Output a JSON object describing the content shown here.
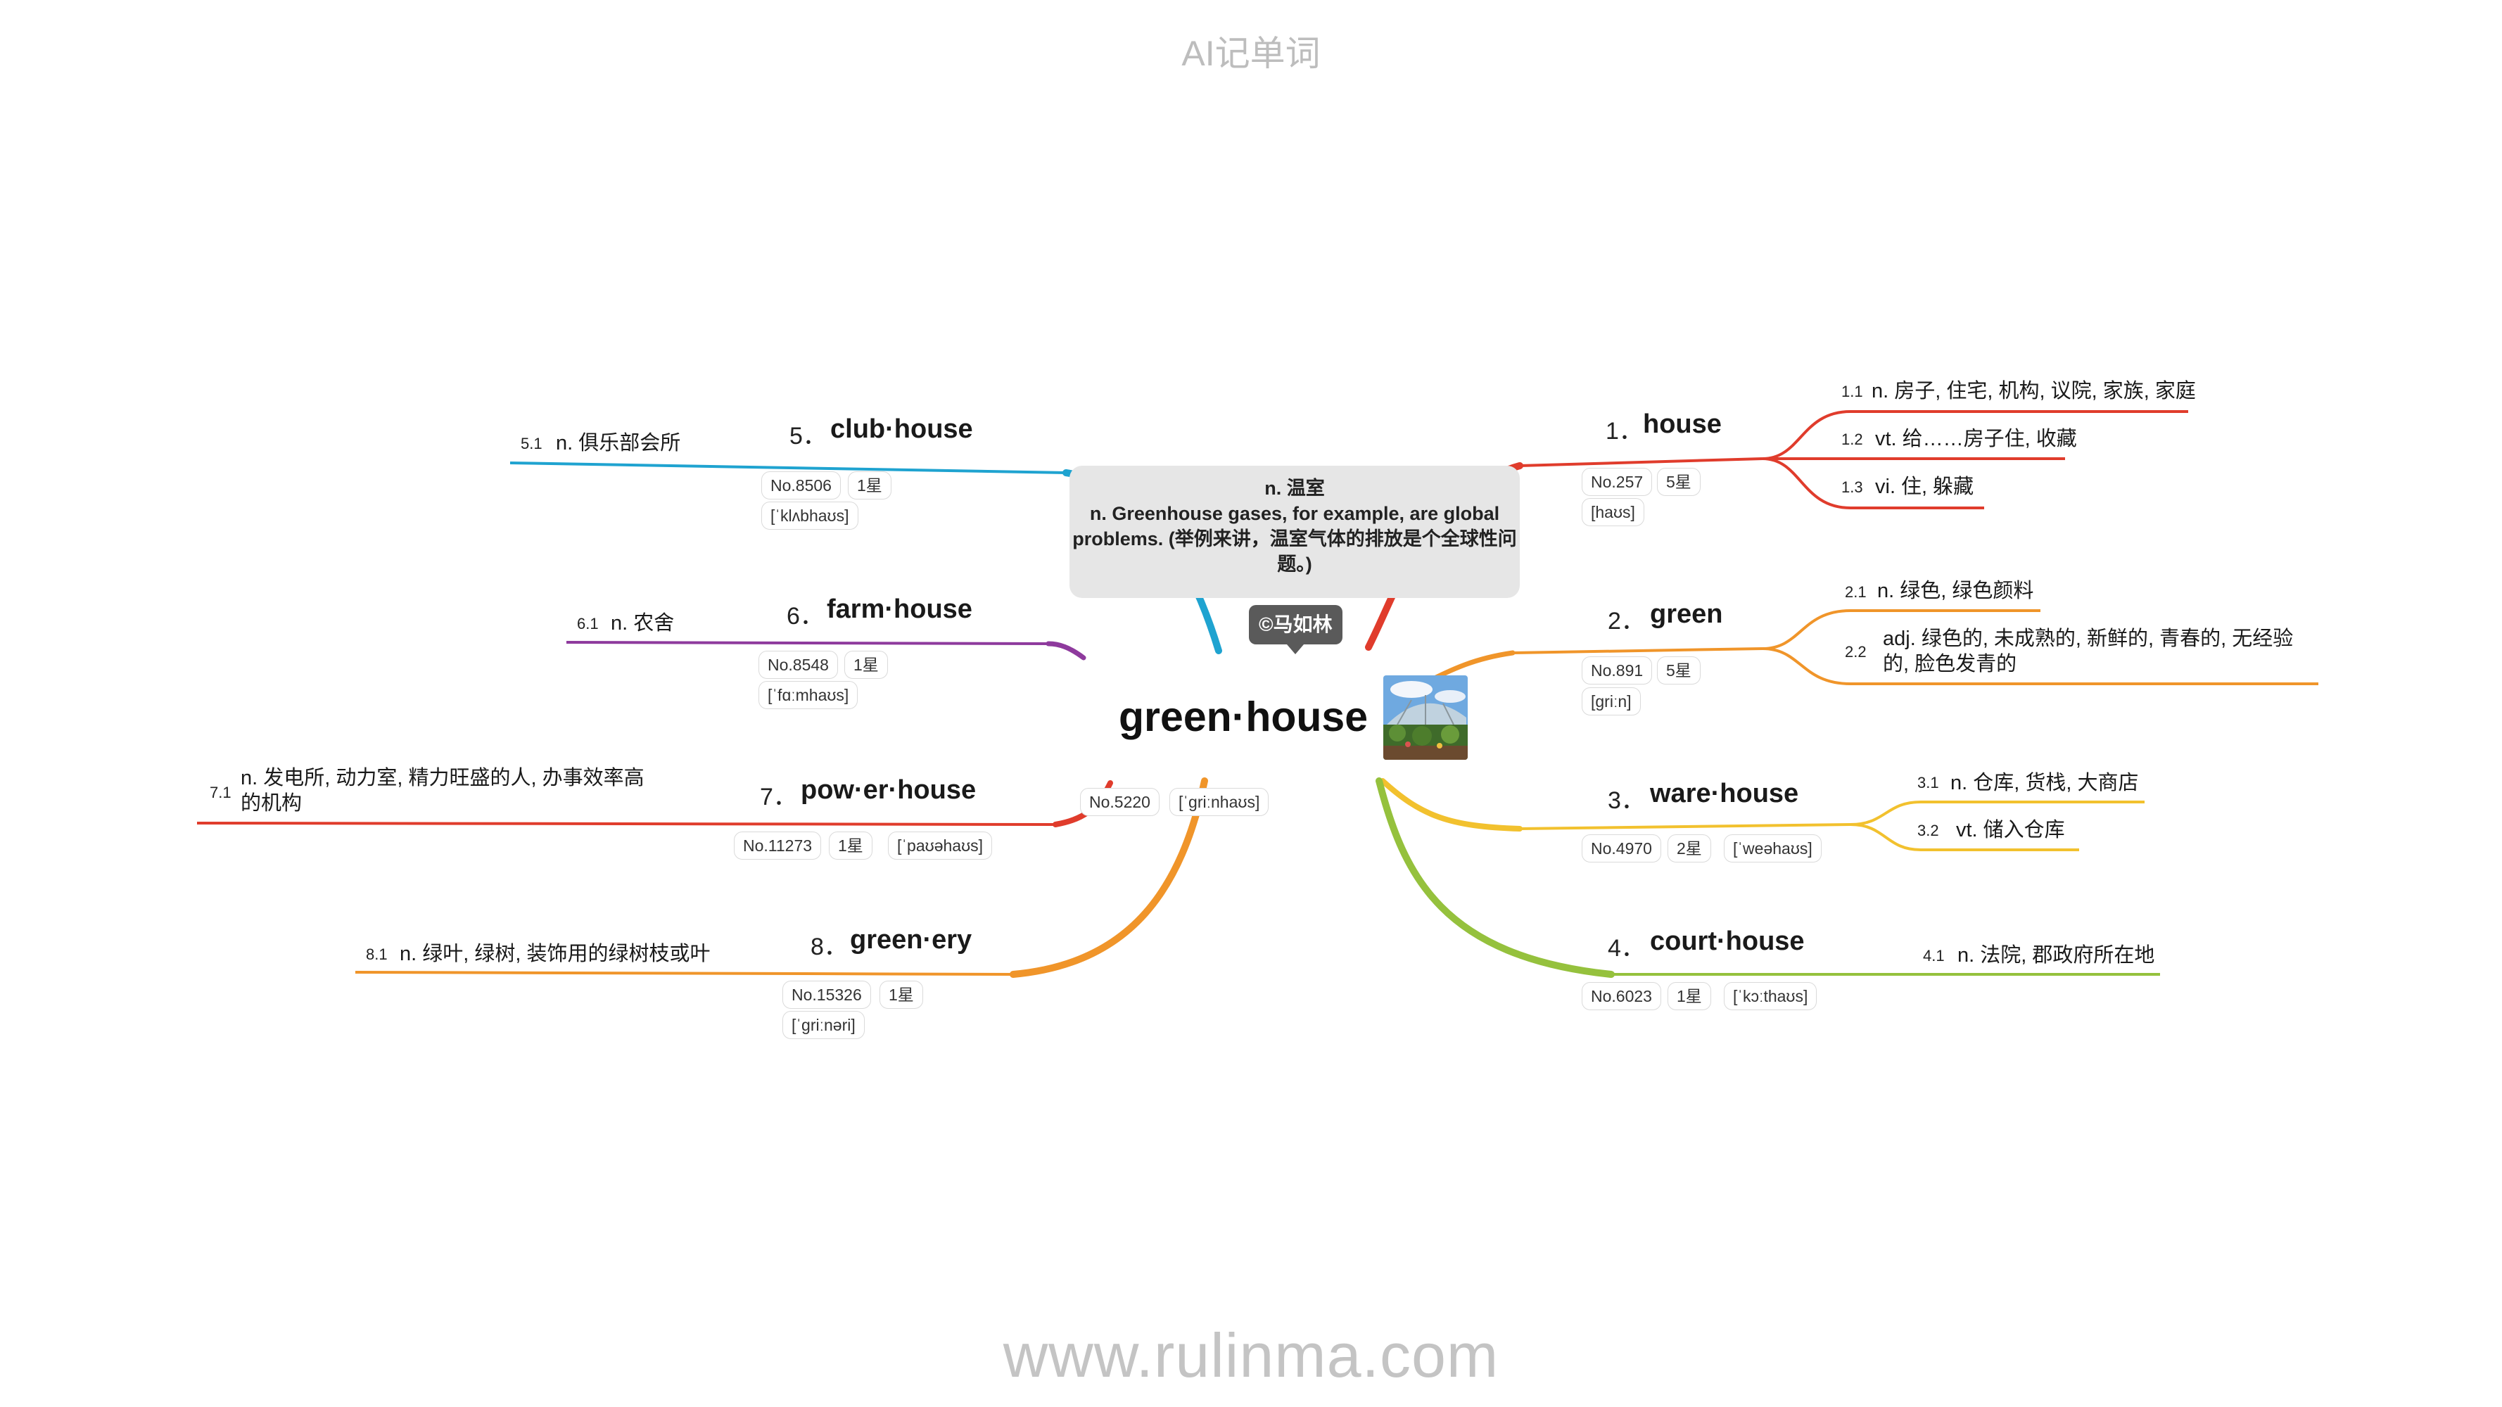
{
  "header": "AI记单词",
  "footer": "www.rulinma.com",
  "center": {
    "word": "green·house",
    "number": "No.5220",
    "phonetic": "[ˈɡriːnhaʊs]",
    "definition": [
      "n. 温室",
      "n. Greenhouse gases, for example, are global problems. (举例来讲，温室气体的排放是个全球性问题。)"
    ],
    "author": "©马如林"
  },
  "branches": [
    {
      "index": "1．",
      "word": "house",
      "number": "No.257",
      "stars": "5星",
      "phonetic": "[haʊs]",
      "color": "#e03c2c",
      "senses": [
        {
          "num": "1.1",
          "text": "n. 房子, 住宅, 机构, 议院, 家族, 家庭"
        },
        {
          "num": "1.2",
          "text": "vt. 给……房子住, 收藏"
        },
        {
          "num": "1.3",
          "text": "vi. 住, 躲藏"
        }
      ]
    },
    {
      "index": "2．",
      "word": "green",
      "number": "No.891",
      "stars": "5星",
      "phonetic": "[ɡriːn]",
      "color": "#f0952a",
      "senses": [
        {
          "num": "2.1",
          "text": "n. 绿色, 绿色颜料"
        },
        {
          "num": "2.2",
          "text": "adj. 绿色的, 未成熟的, 新鲜的, 青春的, 无经验的, 脸色发青的"
        }
      ]
    },
    {
      "index": "3．",
      "word": "ware·house",
      "number": "No.4970",
      "stars": "2星",
      "phonetic": "[ˈweəhaʊs]",
      "color": "#f2c12e",
      "senses": [
        {
          "num": "3.1",
          "text": "n. 仓库, 货栈, 大商店"
        },
        {
          "num": "3.2",
          "text": "vt. 储入仓库"
        }
      ]
    },
    {
      "index": "4．",
      "word": "court·house",
      "number": "No.6023",
      "stars": "1星",
      "phonetic": "[ˈkɔːthaʊs]",
      "color": "#95c13d",
      "senses": [
        {
          "num": "4.1",
          "text": "n. 法院, 郡政府所在地"
        }
      ]
    },
    {
      "index": "5．",
      "word": "club·house",
      "number": "No.8506",
      "stars": "1星",
      "phonetic": "[ˈklʌbhaʊs]",
      "color": "#1fa3d0",
      "senses": [
        {
          "num": "5.1",
          "text": "n. 俱乐部会所"
        }
      ]
    },
    {
      "index": "6．",
      "word": "farm·house",
      "number": "No.8548",
      "stars": "1星",
      "phonetic": "[ˈfɑːmhaʊs]",
      "color": "#8e3a9d",
      "senses": [
        {
          "num": "6.1",
          "text": "n. 农舍"
        }
      ]
    },
    {
      "index": "7．",
      "word": "pow·er·house",
      "number": "No.11273",
      "stars": "1星",
      "phonetic": "[ˈpaʊəhaʊs]",
      "color": "#e03c2c",
      "senses": [
        {
          "num": "7.1",
          "text": "n. 发电所, 动力室, 精力旺盛的人, 办事效率高的机构"
        }
      ]
    },
    {
      "index": "8．",
      "word": "green·ery",
      "number": "No.15326",
      "stars": "1星",
      "phonetic": "[ˈɡriːnəri]",
      "color": "#f0952a",
      "senses": [
        {
          "num": "8.1",
          "text": "n. 绿叶, 绿树, 装饰用的绿树枝或叶"
        }
      ]
    }
  ]
}
